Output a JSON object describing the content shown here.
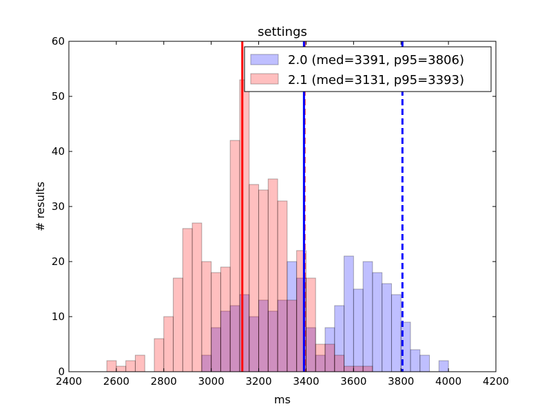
{
  "chart_data": {
    "type": "histogram",
    "title": "settings",
    "xlabel": "ms",
    "ylabel": "# results",
    "xlim": [
      2400,
      4200
    ],
    "ylim": [
      0,
      60
    ],
    "xticks": [
      2400,
      2600,
      2800,
      3000,
      3200,
      3400,
      3600,
      3800,
      4000,
      4200
    ],
    "yticks": [
      0,
      10,
      20,
      30,
      40,
      50,
      60
    ],
    "bin_width": 40,
    "legend_position": "upper-right",
    "grid": false,
    "series": [
      {
        "name": "2.0 (med=3391, p95=3806)",
        "face_color": "#0000ff",
        "alpha": 0.25,
        "line_color": "#0000ff",
        "median": 3391,
        "p95": 3806,
        "bins": [
          {
            "x": 2960,
            "count": 3
          },
          {
            "x": 3000,
            "count": 8
          },
          {
            "x": 3040,
            "count": 11
          },
          {
            "x": 3080,
            "count": 12
          },
          {
            "x": 3120,
            "count": 14
          },
          {
            "x": 3160,
            "count": 10
          },
          {
            "x": 3200,
            "count": 13
          },
          {
            "x": 3240,
            "count": 11
          },
          {
            "x": 3280,
            "count": 13
          },
          {
            "x": 3320,
            "count": 20
          },
          {
            "x": 3360,
            "count": 17
          },
          {
            "x": 3400,
            "count": 8
          },
          {
            "x": 3440,
            "count": 3
          },
          {
            "x": 3480,
            "count": 8
          },
          {
            "x": 3520,
            "count": 12
          },
          {
            "x": 3560,
            "count": 21
          },
          {
            "x": 3600,
            "count": 15
          },
          {
            "x": 3640,
            "count": 20
          },
          {
            "x": 3680,
            "count": 18
          },
          {
            "x": 3720,
            "count": 16
          },
          {
            "x": 3760,
            "count": 14
          },
          {
            "x": 3800,
            "count": 9
          },
          {
            "x": 3840,
            "count": 4
          },
          {
            "x": 3880,
            "count": 3
          },
          {
            "x": 3960,
            "count": 2
          }
        ]
      },
      {
        "name": "2.1 (med=3131, p95=3393)",
        "face_color": "#ff0000",
        "alpha": 0.25,
        "line_color": "#ff0000",
        "median": 3131,
        "p95": 3393,
        "bins": [
          {
            "x": 2560,
            "count": 2
          },
          {
            "x": 2600,
            "count": 1
          },
          {
            "x": 2640,
            "count": 2
          },
          {
            "x": 2680,
            "count": 3
          },
          {
            "x": 2760,
            "count": 6
          },
          {
            "x": 2800,
            "count": 10
          },
          {
            "x": 2840,
            "count": 17
          },
          {
            "x": 2880,
            "count": 26
          },
          {
            "x": 2920,
            "count": 27
          },
          {
            "x": 2960,
            "count": 20
          },
          {
            "x": 3000,
            "count": 18
          },
          {
            "x": 3040,
            "count": 19
          },
          {
            "x": 3080,
            "count": 42
          },
          {
            "x": 3120,
            "count": 53
          },
          {
            "x": 3160,
            "count": 34
          },
          {
            "x": 3200,
            "count": 33
          },
          {
            "x": 3240,
            "count": 35
          },
          {
            "x": 3280,
            "count": 31
          },
          {
            "x": 3320,
            "count": 13
          },
          {
            "x": 3360,
            "count": 22
          },
          {
            "x": 3400,
            "count": 17
          },
          {
            "x": 3440,
            "count": 5
          },
          {
            "x": 3480,
            "count": 5
          },
          {
            "x": 3520,
            "count": 3
          },
          {
            "x": 3560,
            "count": 1
          },
          {
            "x": 3600,
            "count": 1
          },
          {
            "x": 3640,
            "count": 1
          }
        ]
      }
    ]
  }
}
